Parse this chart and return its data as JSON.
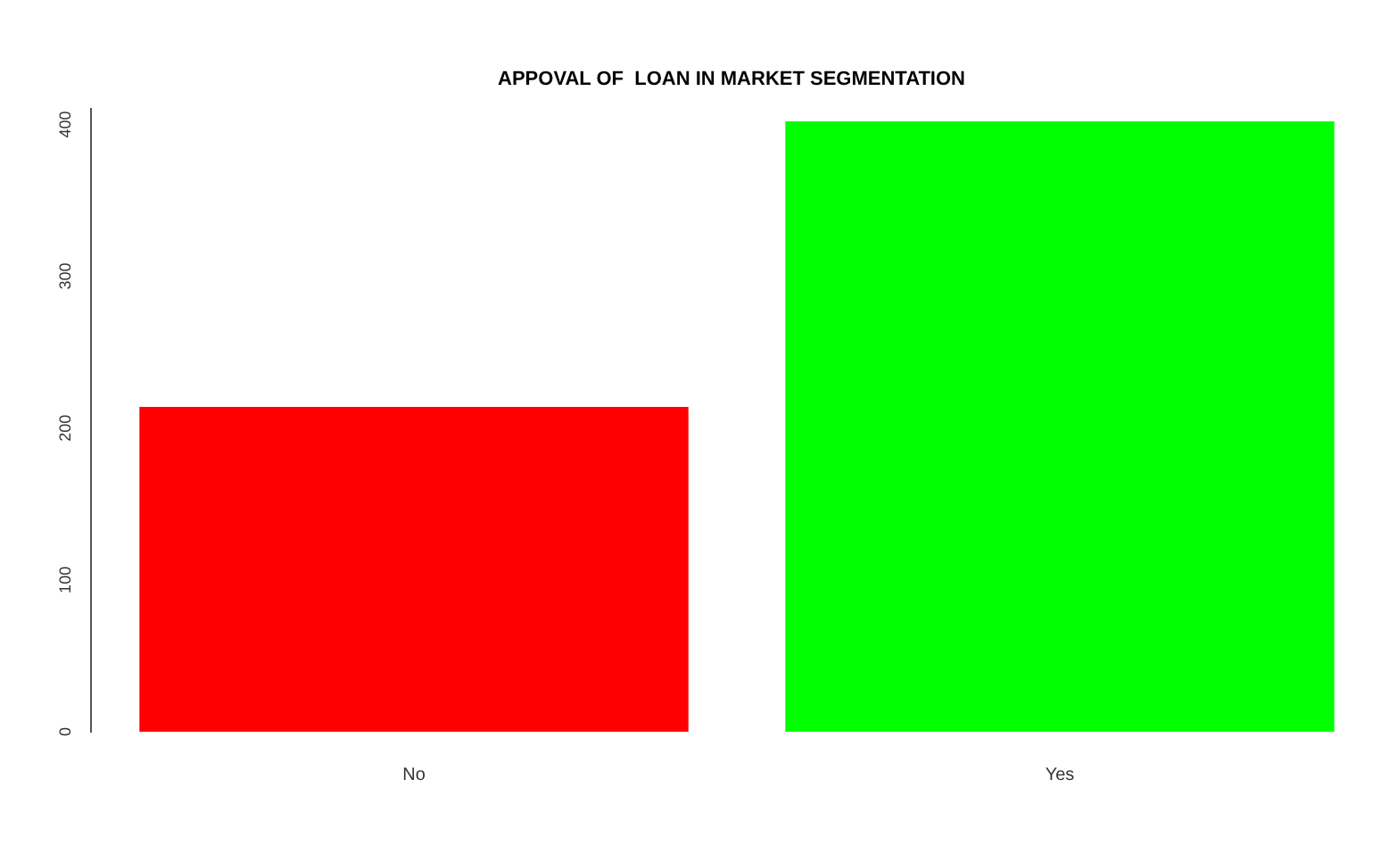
{
  "chart_data": {
    "type": "bar",
    "title": "APPOVAL OF  LOAN IN MARKET SEGMENTATION",
    "categories": [
      "No",
      "Yes"
    ],
    "values": [
      214,
      402
    ],
    "colors": [
      "#ff0000",
      "#00ff00"
    ],
    "ylim": [
      0,
      410
    ],
    "yticks": [
      0,
      100,
      200,
      300,
      400
    ],
    "grid": false,
    "legend": false
  }
}
